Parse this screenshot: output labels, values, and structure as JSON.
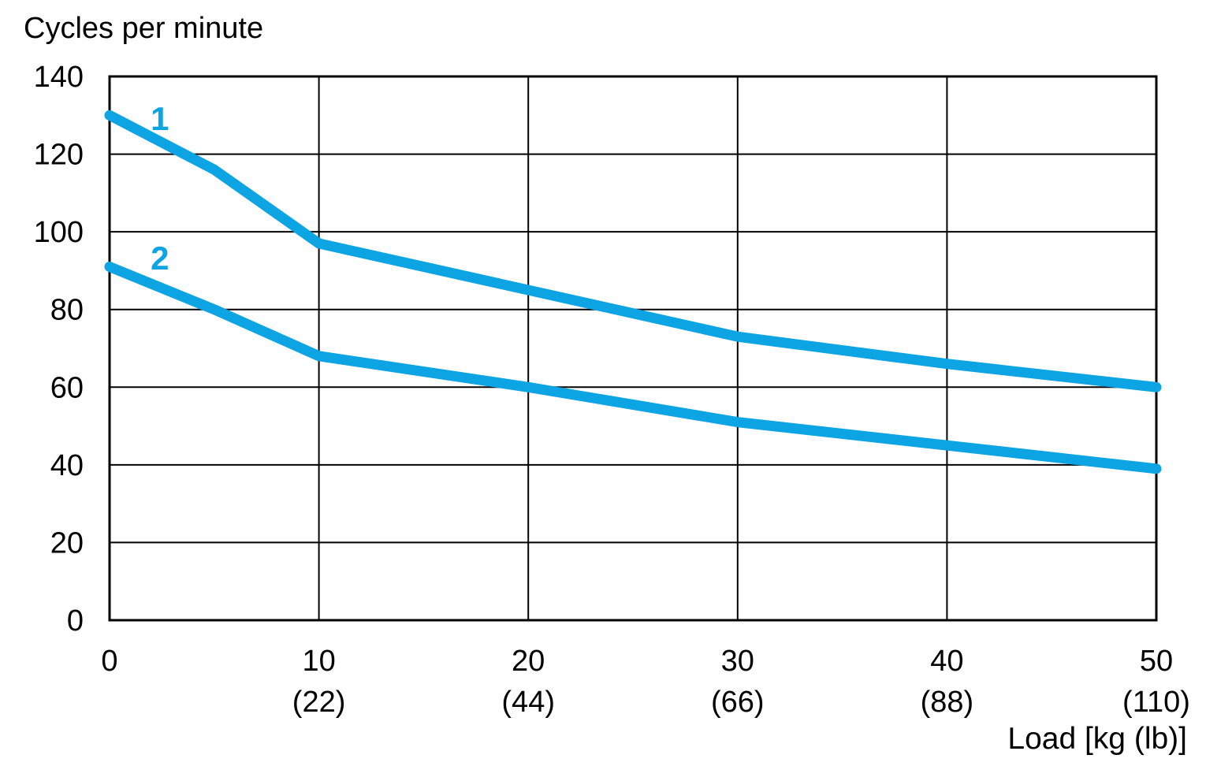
{
  "chart_data": {
    "type": "line",
    "title": "Cycles per minute",
    "xlabel": "Load [kg (lb)]",
    "ylabel": "Cycles per minute",
    "xlim": [
      0,
      50
    ],
    "ylim": [
      0,
      140
    ],
    "grid": true,
    "legend_position": "inline-labels-on-lines",
    "colors": {
      "line": "#0da4e4",
      "grid": "#000000",
      "text": "#000000",
      "background": "#ffffff"
    },
    "y_ticks": [
      0,
      20,
      40,
      60,
      80,
      100,
      120,
      140
    ],
    "x_ticks": [
      {
        "x": 0,
        "kg": "0",
        "lb": ""
      },
      {
        "x": 10,
        "kg": "10",
        "lb": "(22)"
      },
      {
        "x": 20,
        "kg": "20",
        "lb": "(44)"
      },
      {
        "x": 30,
        "kg": "30",
        "lb": "(66)"
      },
      {
        "x": 40,
        "kg": "40",
        "lb": "(88)"
      },
      {
        "x": 50,
        "kg": "50",
        "lb": "(110)"
      }
    ],
    "series": [
      {
        "name": "1",
        "color": "#0da4e4",
        "label_anchor": {
          "x": 2.4,
          "y": 126.2
        },
        "points": [
          [
            0,
            130
          ],
          [
            5,
            116
          ],
          [
            10,
            97
          ],
          [
            20,
            85
          ],
          [
            30,
            73
          ],
          [
            40,
            66
          ],
          [
            50,
            60
          ]
        ]
      },
      {
        "name": "2",
        "color": "#0da4e4",
        "label_anchor": {
          "x": 2.4,
          "y": 90.3
        },
        "points": [
          [
            0,
            91
          ],
          [
            5,
            80
          ],
          [
            10,
            68
          ],
          [
            20,
            60
          ],
          [
            30,
            51
          ],
          [
            40,
            45
          ],
          [
            50,
            39
          ]
        ]
      }
    ]
  }
}
